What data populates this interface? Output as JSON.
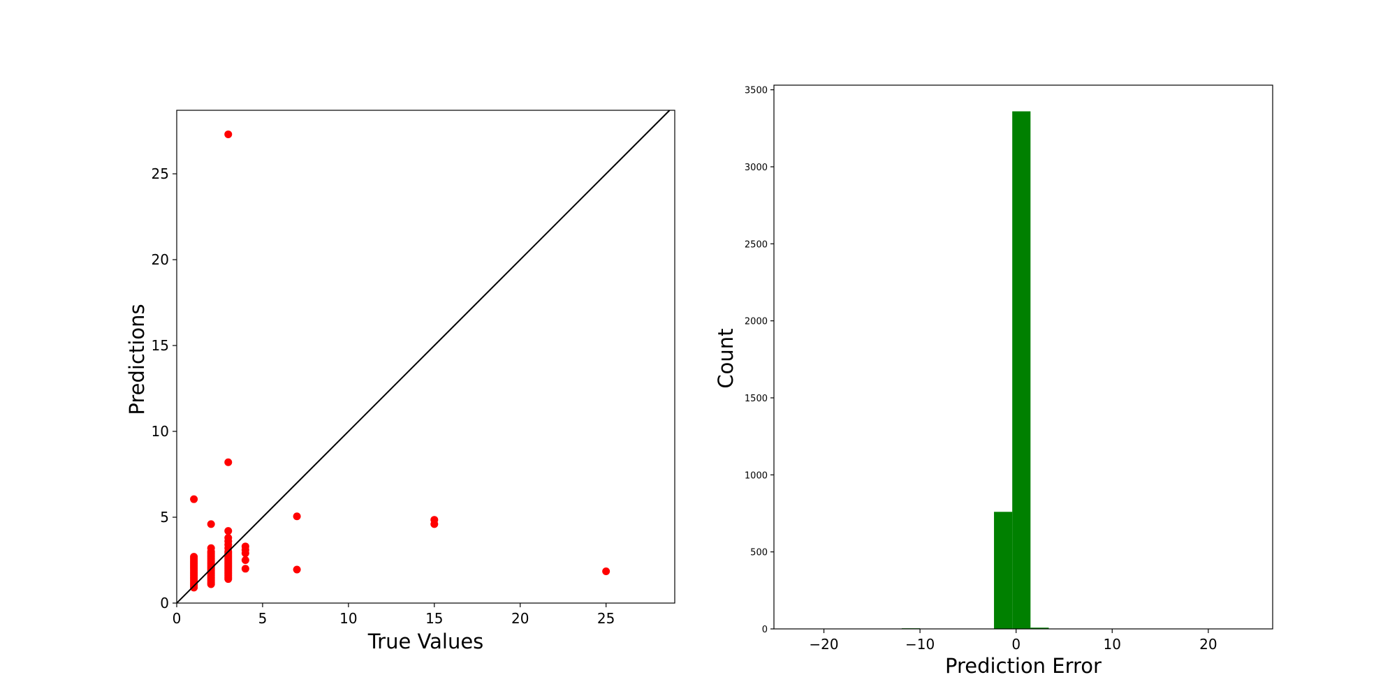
{
  "chart_data": [
    {
      "type": "scatter",
      "xlabel": "True Values",
      "ylabel": "Predictions",
      "xlim": [
        0,
        29
      ],
      "ylim": [
        0,
        28.7
      ],
      "xticks": [
        0,
        5,
        10,
        15,
        20,
        25
      ],
      "yticks": [
        0,
        5,
        10,
        15,
        20,
        25
      ],
      "point_color": "#ff0000",
      "line_color": "#000000",
      "reference_line": "y = x",
      "points": [
        [
          1,
          0.9
        ],
        [
          1,
          1.0
        ],
        [
          1,
          1.1
        ],
        [
          1,
          1.2
        ],
        [
          1,
          1.3
        ],
        [
          1,
          1.4
        ],
        [
          1,
          1.5
        ],
        [
          1,
          1.6
        ],
        [
          1,
          1.7
        ],
        [
          1,
          1.8
        ],
        [
          1,
          1.9
        ],
        [
          1,
          2.0
        ],
        [
          1,
          2.1
        ],
        [
          1,
          2.2
        ],
        [
          1,
          2.3
        ],
        [
          1,
          2.4
        ],
        [
          1,
          2.5
        ],
        [
          1,
          2.6
        ],
        [
          1,
          2.7
        ],
        [
          1,
          6.05
        ],
        [
          2,
          1.1
        ],
        [
          2,
          1.2
        ],
        [
          2,
          1.3
        ],
        [
          2,
          1.4
        ],
        [
          2,
          1.5
        ],
        [
          2,
          1.6
        ],
        [
          2,
          1.7
        ],
        [
          2,
          1.8
        ],
        [
          2,
          1.9
        ],
        [
          2,
          2.0
        ],
        [
          2,
          2.1
        ],
        [
          2,
          2.2
        ],
        [
          2,
          2.3
        ],
        [
          2,
          2.4
        ],
        [
          2,
          2.5
        ],
        [
          2,
          2.6
        ],
        [
          2,
          2.7
        ],
        [
          2,
          2.8
        ],
        [
          2,
          2.9
        ],
        [
          2,
          3.0
        ],
        [
          2,
          3.2
        ],
        [
          2,
          4.6
        ],
        [
          3,
          1.4
        ],
        [
          3,
          1.5
        ],
        [
          3,
          1.6
        ],
        [
          3,
          1.7
        ],
        [
          3,
          1.8
        ],
        [
          3,
          1.9
        ],
        [
          3,
          2.0
        ],
        [
          3,
          2.1
        ],
        [
          3,
          2.2
        ],
        [
          3,
          2.3
        ],
        [
          3,
          2.4
        ],
        [
          3,
          2.5
        ],
        [
          3,
          2.6
        ],
        [
          3,
          2.7
        ],
        [
          3,
          2.8
        ],
        [
          3,
          2.9
        ],
        [
          3,
          3.0
        ],
        [
          3,
          3.2
        ],
        [
          3,
          3.4
        ],
        [
          3,
          3.6
        ],
        [
          3,
          3.8
        ],
        [
          3,
          4.2
        ],
        [
          3,
          8.2
        ],
        [
          3,
          27.3
        ],
        [
          4,
          2.0
        ],
        [
          4,
          2.5
        ],
        [
          4,
          2.9
        ],
        [
          4,
          3.1
        ],
        [
          4,
          3.3
        ],
        [
          7,
          1.95
        ],
        [
          7,
          5.05
        ],
        [
          15,
          4.6
        ],
        [
          15,
          4.85
        ],
        [
          25,
          1.85
        ]
      ]
    },
    {
      "type": "bar",
      "xlabel": "Prediction Error",
      "ylabel": "Count",
      "xlim": [
        -25.2,
        26.7
      ],
      "ylim": [
        0,
        3530
      ],
      "xticks": [
        -20,
        -10,
        0,
        10,
        20
      ],
      "xtick_labels": [
        "−20",
        "−10",
        "0",
        "10",
        "20"
      ],
      "yticks": [
        0,
        500,
        1000,
        1500,
        2000,
        2500,
        3000,
        3500
      ],
      "bar_color": "#008000",
      "bins": [
        {
          "x0": -11.9,
          "x1": -10.0,
          "count": 4
        },
        {
          "x0": -2.3,
          "x1": -0.4,
          "count": 760
        },
        {
          "x0": -0.4,
          "x1": 1.5,
          "count": 3360
        },
        {
          "x0": 1.5,
          "x1": 3.4,
          "count": 8
        }
      ]
    }
  ]
}
